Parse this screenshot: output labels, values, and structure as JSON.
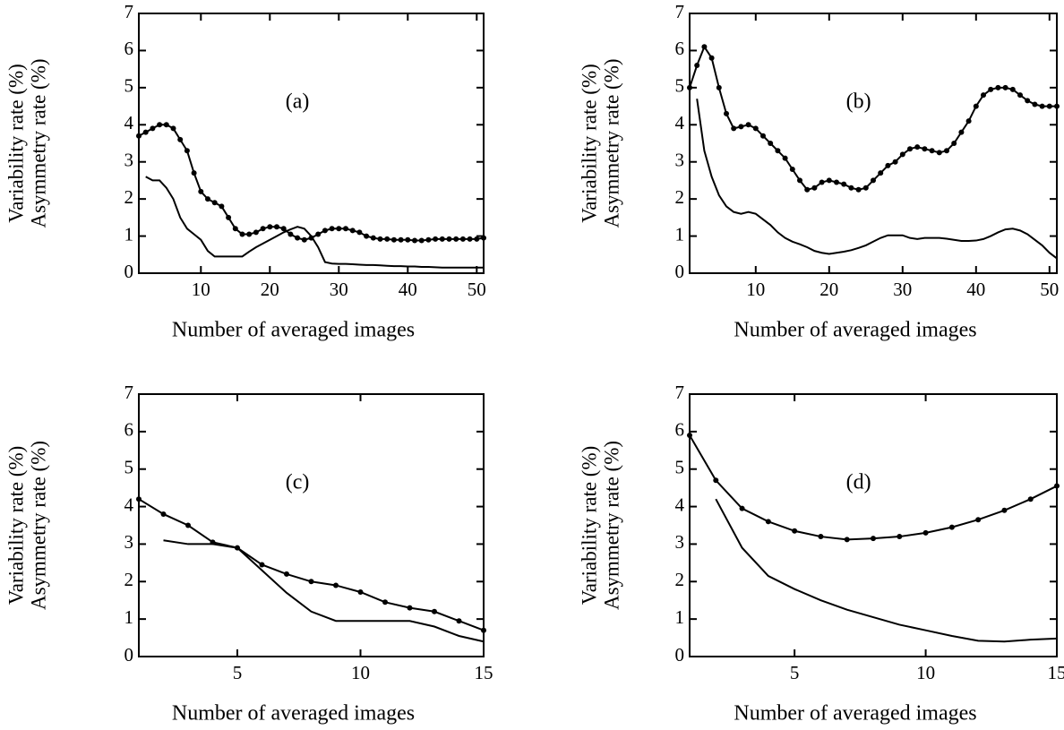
{
  "chart_data": [
    {
      "type": "line",
      "annotation": "(a)",
      "ylabel": "Variability rate (%)",
      "ylabel2": "Asymmetry rate (%)",
      "xlabel": "Number of averaged images",
      "x": [
        1,
        2,
        3,
        4,
        5,
        6,
        7,
        8,
        9,
        10,
        11,
        12,
        13,
        14,
        15,
        16,
        17,
        18,
        19,
        20,
        21,
        22,
        23,
        24,
        25,
        26,
        27,
        28,
        29,
        30,
        31,
        32,
        33,
        34,
        35,
        36,
        37,
        38,
        39,
        40,
        41,
        42,
        43,
        44,
        45,
        46,
        47,
        48,
        49,
        50,
        51
      ],
      "xlim": [
        1,
        51
      ],
      "xticks": [
        10,
        20,
        30,
        40,
        50
      ],
      "ylim": [
        0,
        7
      ],
      "yticks": [
        0,
        1,
        2,
        3,
        4,
        5,
        6,
        7
      ],
      "series": [
        {
          "color": "#000000",
          "markers": true,
          "values": [
            3.7,
            3.8,
            3.9,
            4.0,
            4.0,
            3.9,
            3.6,
            3.3,
            2.7,
            2.2,
            2.0,
            1.9,
            1.8,
            1.5,
            1.2,
            1.05,
            1.05,
            1.1,
            1.2,
            1.25,
            1.25,
            1.2,
            1.05,
            0.95,
            0.9,
            0.95,
            1.05,
            1.15,
            1.2,
            1.2,
            1.2,
            1.15,
            1.1,
            1.0,
            0.95,
            0.92,
            0.92,
            0.9,
            0.9,
            0.9,
            0.88,
            0.88,
            0.9,
            0.92,
            0.92,
            0.92,
            0.92,
            0.92,
            0.92,
            0.92,
            0.95
          ]
        },
        {
          "color": "#000000",
          "markers": false,
          "values": [
            null,
            2.6,
            2.5,
            2.5,
            2.3,
            2.0,
            1.5,
            1.2,
            1.05,
            0.9,
            0.6,
            0.45,
            0.45,
            0.45,
            0.45,
            0.45,
            0.58,
            0.7,
            0.8,
            0.9,
            1.0,
            1.1,
            1.18,
            1.25,
            1.2,
            1.0,
            0.7,
            0.3,
            0.26,
            0.25,
            0.25,
            0.24,
            0.23,
            0.22,
            0.22,
            0.21,
            0.2,
            0.19,
            0.19,
            0.18,
            0.18,
            0.17,
            0.17,
            0.16,
            0.15,
            0.15,
            0.15,
            0.15,
            0.15,
            0.15,
            0.15
          ]
        }
      ]
    },
    {
      "type": "line",
      "annotation": "(b)",
      "ylabel": "Variability rate (%)",
      "ylabel2": "Asymmetry rate (%)",
      "xlabel": "Number of averaged images",
      "x": [
        1,
        2,
        3,
        4,
        5,
        6,
        7,
        8,
        9,
        10,
        11,
        12,
        13,
        14,
        15,
        16,
        17,
        18,
        19,
        20,
        21,
        22,
        23,
        24,
        25,
        26,
        27,
        28,
        29,
        30,
        31,
        32,
        33,
        34,
        35,
        36,
        37,
        38,
        39,
        40,
        41,
        42,
        43,
        44,
        45,
        46,
        47,
        48,
        49,
        50,
        51
      ],
      "xlim": [
        1,
        51
      ],
      "xticks": [
        10,
        20,
        30,
        40,
        50
      ],
      "ylim": [
        0,
        7
      ],
      "yticks": [
        0,
        1,
        2,
        3,
        4,
        5,
        6,
        7
      ],
      "series": [
        {
          "color": "#000000",
          "markers": true,
          "values": [
            5.0,
            5.6,
            6.1,
            5.8,
            5.0,
            4.3,
            3.9,
            3.95,
            4.0,
            3.9,
            3.7,
            3.5,
            3.3,
            3.1,
            2.8,
            2.5,
            2.25,
            2.3,
            2.45,
            2.5,
            2.45,
            2.4,
            2.3,
            2.25,
            2.3,
            2.5,
            2.7,
            2.9,
            3.0,
            3.2,
            3.35,
            3.4,
            3.35,
            3.3,
            3.25,
            3.3,
            3.5,
            3.8,
            4.1,
            4.5,
            4.8,
            4.95,
            5.0,
            5.0,
            4.95,
            4.8,
            4.65,
            4.55,
            4.5,
            4.5,
            4.5
          ]
        },
        {
          "color": "#000000",
          "markers": false,
          "values": [
            null,
            4.7,
            3.3,
            2.6,
            2.1,
            1.8,
            1.65,
            1.6,
            1.65,
            1.6,
            1.45,
            1.3,
            1.1,
            0.95,
            0.85,
            0.78,
            0.7,
            0.6,
            0.55,
            0.52,
            0.55,
            0.58,
            0.62,
            0.68,
            0.75,
            0.85,
            0.95,
            1.02,
            1.02,
            1.02,
            0.95,
            0.92,
            0.95,
            0.95,
            0.95,
            0.93,
            0.9,
            0.87,
            0.87,
            0.88,
            0.92,
            1.0,
            1.1,
            1.18,
            1.2,
            1.15,
            1.05,
            0.9,
            0.75,
            0.55,
            0.4
          ]
        }
      ]
    },
    {
      "type": "line",
      "annotation": "(c)",
      "ylabel": "Variability rate (%)",
      "ylabel2": "Asymmetry rate (%)",
      "xlabel": "Number of averaged images",
      "x": [
        1,
        2,
        3,
        4,
        5,
        6,
        7,
        8,
        9,
        10,
        11,
        12,
        13,
        14,
        15
      ],
      "xlim": [
        1,
        15
      ],
      "xticks": [
        5,
        10,
        15
      ],
      "ylim": [
        0,
        7
      ],
      "yticks": [
        0,
        1,
        2,
        3,
        4,
        5,
        6,
        7
      ],
      "series": [
        {
          "color": "#000000",
          "markers": true,
          "values": [
            4.2,
            3.8,
            3.5,
            3.05,
            2.9,
            2.45,
            2.2,
            2.0,
            1.9,
            1.72,
            1.45,
            1.3,
            1.2,
            0.95,
            0.7
          ]
        },
        {
          "color": "#000000",
          "markers": false,
          "values": [
            null,
            3.1,
            3.0,
            3.0,
            2.9,
            2.3,
            1.7,
            1.2,
            0.95,
            0.95,
            0.95,
            0.95,
            0.8,
            0.55,
            0.4
          ]
        }
      ]
    },
    {
      "type": "line",
      "annotation": "(d)",
      "ylabel": "Variability rate (%)",
      "ylabel2": "Asymmetry rate (%)",
      "xlabel": "Number of averaged images",
      "x": [
        1,
        2,
        3,
        4,
        5,
        6,
        7,
        8,
        9,
        10,
        11,
        12,
        13,
        14,
        15
      ],
      "xlim": [
        1,
        15
      ],
      "xticks": [
        5,
        10,
        15
      ],
      "ylim": [
        0,
        7
      ],
      "yticks": [
        0,
        1,
        2,
        3,
        4,
        5,
        6,
        7
      ],
      "series": [
        {
          "color": "#000000",
          "markers": true,
          "values": [
            5.9,
            4.7,
            3.95,
            3.6,
            3.35,
            3.2,
            3.12,
            3.15,
            3.2,
            3.3,
            3.45,
            3.65,
            3.9,
            4.2,
            4.55
          ]
        },
        {
          "color": "#000000",
          "markers": false,
          "values": [
            null,
            4.2,
            2.9,
            2.15,
            1.8,
            1.5,
            1.25,
            1.05,
            0.85,
            0.7,
            0.55,
            0.42,
            0.4,
            0.45,
            0.48
          ]
        }
      ]
    }
  ]
}
